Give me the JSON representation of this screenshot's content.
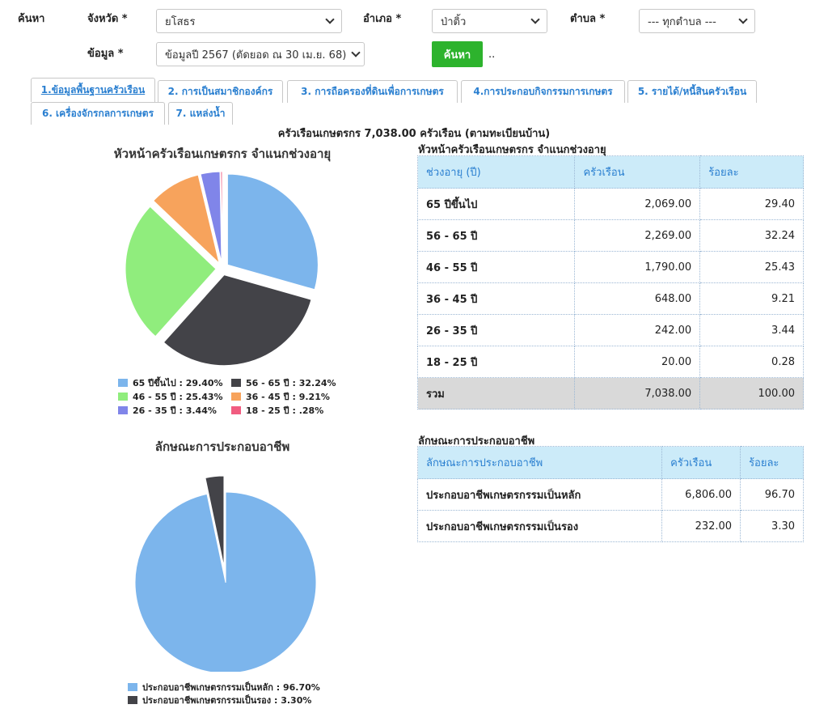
{
  "search": {
    "label": "ค้นหา",
    "province_label": "จังหวัด *",
    "province_value": "ยโสธร",
    "district_label": "อำเภอ *",
    "district_value": "ป่าติ้ว",
    "subdistrict_label": "ตำบล *",
    "subdistrict_value": "--- ทุกตำบล ---",
    "data_label": "ข้อมูล *",
    "data_value": "ข้อมูลปี 2567 (ตัดยอด ณ 30 เม.ย. 68)",
    "button": "ค้นหา",
    "dots": ".."
  },
  "tabs": [
    {
      "label": "1.ข้อมูลพื้นฐานครัวเรือน"
    },
    {
      "label": "2. การเป็นสมาชิกองค์กร"
    },
    {
      "label": "3. การถือครองที่ดินเพื่อการเกษตร"
    },
    {
      "label": "4.การประกอบกิจกรรมการเกษตร"
    },
    {
      "label": "5. รายได้/หนี้สินครัวเรือน"
    },
    {
      "label": "6. เครื่องจักรกลการเกษตร"
    },
    {
      "label": "7. แหล่งน้ำ"
    }
  ],
  "summary": "ครัวเรือนเกษตรกร 7,038.00 ครัวเรือน (ตามทะเบียนบ้าน)",
  "age_table": {
    "title": "หัวหน้าครัวเรือนเกษตรกร จำแนกช่วงอายุ",
    "headers": [
      "ช่วงอายุ (ปี)",
      "ครัวเรือน",
      "ร้อยละ"
    ],
    "rows": [
      [
        "65 ปีขึ้นไป",
        "2,069.00",
        "29.40"
      ],
      [
        "56 - 65 ปี",
        "2,269.00",
        "32.24"
      ],
      [
        "46 - 55 ปี",
        "1,790.00",
        "25.43"
      ],
      [
        "36 - 45 ปี",
        "648.00",
        "9.21"
      ],
      [
        "26 - 35 ปี",
        "242.00",
        "3.44"
      ],
      [
        "18 - 25 ปี",
        "20.00",
        "0.28"
      ]
    ],
    "total": [
      "รวม",
      "7,038.00",
      "100.00"
    ]
  },
  "occupation_table": {
    "title": "ลักษณะการประกอบอาชีพ",
    "headers": [
      "ลักษณะการประกอบอาชีพ",
      "ครัวเรือน",
      "ร้อยละ"
    ],
    "rows": [
      [
        "ประกอบอาชีพเกษตรกรรมเป็นหลัก",
        "6,806.00",
        "96.70"
      ],
      [
        "ประกอบอาชีพเกษตรกรรมเป็นรอง",
        "232.00",
        "3.30"
      ]
    ]
  },
  "chart_data": [
    {
      "type": "pie",
      "title": "หัวหน้าครัวเรือนเกษตรกร จำแนกช่วงอายุ",
      "categories": [
        "65 ปีขึ้นไป",
        "56 - 65 ปี",
        "46 - 55 ปี",
        "36 - 45 ปี",
        "26 - 35 ปี",
        "18 - 25 ปี"
      ],
      "values": [
        29.4,
        32.24,
        25.43,
        9.21,
        3.44,
        0.28
      ],
      "legend": [
        "65 ปีขึ้นไป : 29.40%",
        "56 - 65 ปี : 32.24%",
        "46 - 55 ปี : 25.43%",
        "36 - 45 ปี : 9.21%",
        "26 - 35 ปี : 3.44%",
        "18 - 25 ปี : .28%"
      ],
      "colors": [
        "#7cb5ec",
        "#434348",
        "#90ed7d",
        "#f7a35c",
        "#8085e9",
        "#f15c80"
      ],
      "legend_position": "bottom"
    },
    {
      "type": "pie",
      "title": "ลักษณะการประกอบอาชีพ",
      "categories": [
        "ประกอบอาชีพเกษตรกรรมเป็นหลัก",
        "ประกอบอาชีพเกษตรกรรมเป็นรอง"
      ],
      "values": [
        96.7,
        3.3
      ],
      "legend": [
        "ประกอบอาชีพเกษตรกรรมเป็นหลัก : 96.70%",
        "ประกอบอาชีพเกษตรกรรมเป็นรอง : 3.30%"
      ],
      "colors": [
        "#7cb5ec",
        "#434348"
      ],
      "legend_position": "bottom"
    }
  ]
}
